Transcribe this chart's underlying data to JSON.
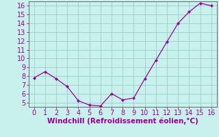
{
  "x": [
    0,
    1,
    2,
    3,
    4,
    5,
    6,
    7,
    8,
    9,
    10,
    11,
    12,
    13,
    14,
    15,
    16
  ],
  "y": [
    7.8,
    8.5,
    7.7,
    6.8,
    5.2,
    4.7,
    4.6,
    6.0,
    5.3,
    5.5,
    7.7,
    9.8,
    11.9,
    14.0,
    15.3,
    16.3,
    16.0
  ],
  "line_color": "#990099",
  "marker_color": "#990099",
  "bg_color": "#c8f0ec",
  "grid_color": "#99cccc",
  "xlabel": "Windchill (Refroidissement éolien,°C)",
  "xlabel_color": "#990099",
  "xlabel_fontsize": 7.5,
  "tick_color": "#990099",
  "tick_fontsize": 7,
  "ylim": [
    4.5,
    16.5
  ],
  "xlim": [
    -0.5,
    16.5
  ],
  "yticks": [
    5,
    6,
    7,
    8,
    9,
    10,
    11,
    12,
    13,
    14,
    15,
    16
  ],
  "xticks": [
    0,
    1,
    2,
    3,
    4,
    5,
    6,
    7,
    8,
    9,
    10,
    11,
    12,
    13,
    14,
    15,
    16
  ]
}
